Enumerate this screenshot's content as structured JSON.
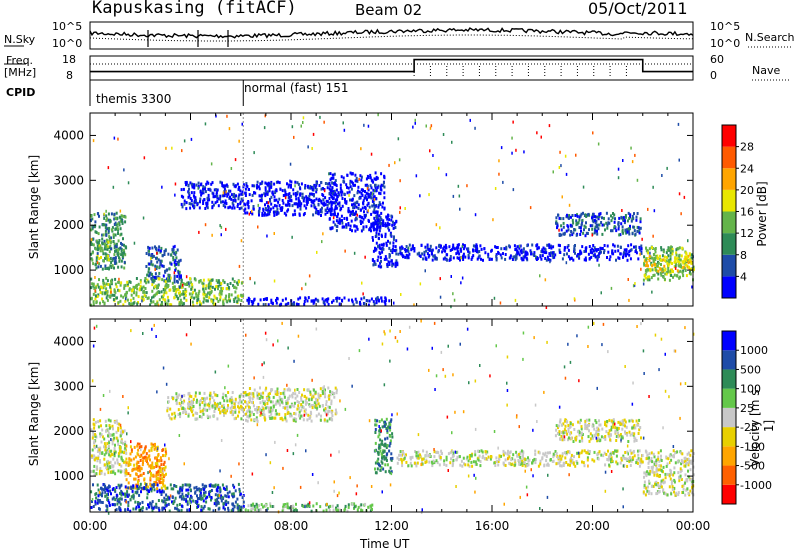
{
  "header": {
    "station": "Kapuskasing (fitACF)",
    "beam": "Beam 02",
    "date": "05/Oct/2011"
  },
  "summary": {
    "nsky_label": "N.Sky",
    "nsky_ticks": [
      "10^5",
      "10^0"
    ],
    "nsearch_label": "N.Search",
    "nsearch_ticks": [
      "10^5",
      "10^0"
    ],
    "freq_label_line1": "Freq.",
    "freq_label_line2": "[MHz]",
    "freq_ticks": [
      "18",
      "8"
    ],
    "nave_label": "Nave",
    "nave_ticks": [
      "60",
      "0"
    ],
    "cpid_label": "CPID",
    "modes": [
      {
        "label": "themis 3300",
        "start_hour": 0
      },
      {
        "label": "normal (fast) 151",
        "start_hour": 6.1
      }
    ],
    "freq_steps": [
      {
        "start_hour": 0,
        "level": 0.35
      },
      {
        "start_hour": 12.9,
        "level": 0.85
      },
      {
        "start_hour": 22,
        "level": 0.35
      }
    ]
  },
  "chart_data": [
    {
      "type": "heatmap",
      "name": "power",
      "ylabel": "Slant Range [km]",
      "xlabel": "",
      "ylim": [
        200,
        4500
      ],
      "xlim": [
        0,
        24
      ],
      "yticks": [
        1000,
        2000,
        3000,
        4000
      ],
      "colorbar": {
        "label": "Power [dB]",
        "ticks": [
          "28",
          "24",
          "20",
          "16",
          "12",
          "8",
          "4"
        ],
        "colors": [
          "#0000ff",
          "#1e4ca8",
          "#2e8b57",
          "#64b44a",
          "#e8e600",
          "#ffa500",
          "#ff5a00",
          "#ff0000"
        ]
      },
      "regions": [
        {
          "x": [
            0,
            1.4
          ],
          "y": [
            1050,
            2300
          ],
          "color_index": 2
        },
        {
          "x": [
            0.2,
            0.8
          ],
          "y": [
            1200,
            1700
          ],
          "color_index": 3
        },
        {
          "x": [
            2.2,
            3.6
          ],
          "y": [
            750,
            1550
          ],
          "color_index": 1
        },
        {
          "x": [
            3.6,
            6.1
          ],
          "y": [
            2400,
            3000
          ],
          "color_index": 0
        },
        {
          "x": [
            6.1,
            9.8
          ],
          "y": [
            2250,
            3000
          ],
          "color_index": 0
        },
        {
          "x": [
            0,
            6.1
          ],
          "y": [
            250,
            850
          ],
          "color_index": 3
        },
        {
          "x": [
            6.1,
            12
          ],
          "y": [
            250,
            420
          ],
          "color_index": 0
        },
        {
          "x": [
            9.5,
            11.7
          ],
          "y": [
            1900,
            3200
          ],
          "color_index": 0
        },
        {
          "x": [
            11.2,
            12.2
          ],
          "y": [
            1100,
            2300
          ],
          "color_index": 0
        },
        {
          "x": [
            12.2,
            22
          ],
          "y": [
            1250,
            1600
          ],
          "color_index": 0
        },
        {
          "x": [
            18.5,
            21.9
          ],
          "y": [
            1800,
            2300
          ],
          "color_index": 1
        },
        {
          "x": [
            22,
            24
          ],
          "y": [
            800,
            1550
          ],
          "color_index": 3
        },
        {
          "x": [
            22,
            24
          ],
          "y": [
            1000,
            1350
          ],
          "color_index": 4
        }
      ]
    },
    {
      "type": "heatmap",
      "name": "velocity",
      "ylabel": "Slant Range [km]",
      "xlabel": "Time UT",
      "ylim": [
        200,
        4500
      ],
      "xlim": [
        0,
        24
      ],
      "yticks": [
        1000,
        2000,
        3000,
        4000
      ],
      "xticks": [
        "00:00",
        "04:00",
        "08:00",
        "12:00",
        "16:00",
        "20:00",
        "00:00"
      ],
      "colorbar": {
        "label": "Velocity [m s-1]",
        "ticks": [
          "1000",
          "500",
          "100",
          "25",
          "-25",
          "-100",
          "-500",
          "-1000"
        ],
        "colors": [
          "#ff0000",
          "#ff6000",
          "#ffa500",
          "#e8d000",
          "#c8c8c8",
          "#64c84a",
          "#2e8b57",
          "#1e4ca8",
          "#0000ff"
        ]
      },
      "regions": [
        {
          "x": [
            0,
            1.4
          ],
          "y": [
            1050,
            2300
          ],
          "color_index": 4
        },
        {
          "x": [
            1.4,
            3.0
          ],
          "y": [
            750,
            1750
          ],
          "color_index": 2
        },
        {
          "x": [
            3.0,
            6.1
          ],
          "y": [
            2300,
            2900
          ],
          "color_index": 4
        },
        {
          "x": [
            6.1,
            9.8
          ],
          "y": [
            2250,
            3000
          ],
          "color_index": 4
        },
        {
          "x": [
            0,
            6.1
          ],
          "y": [
            250,
            850
          ],
          "color_index": 7
        },
        {
          "x": [
            6.1,
            11.2
          ],
          "y": [
            250,
            420
          ],
          "color_index": 5
        },
        {
          "x": [
            11.3,
            12.0
          ],
          "y": [
            1100,
            2300
          ],
          "color_index": 6
        },
        {
          "x": [
            12.2,
            22
          ],
          "y": [
            1250,
            1600
          ],
          "color_index": 4
        },
        {
          "x": [
            18.5,
            21.9
          ],
          "y": [
            1800,
            2300
          ],
          "color_index": 4
        },
        {
          "x": [
            22,
            24
          ],
          "y": [
            600,
            1600
          ],
          "color_index": 4
        }
      ]
    }
  ]
}
